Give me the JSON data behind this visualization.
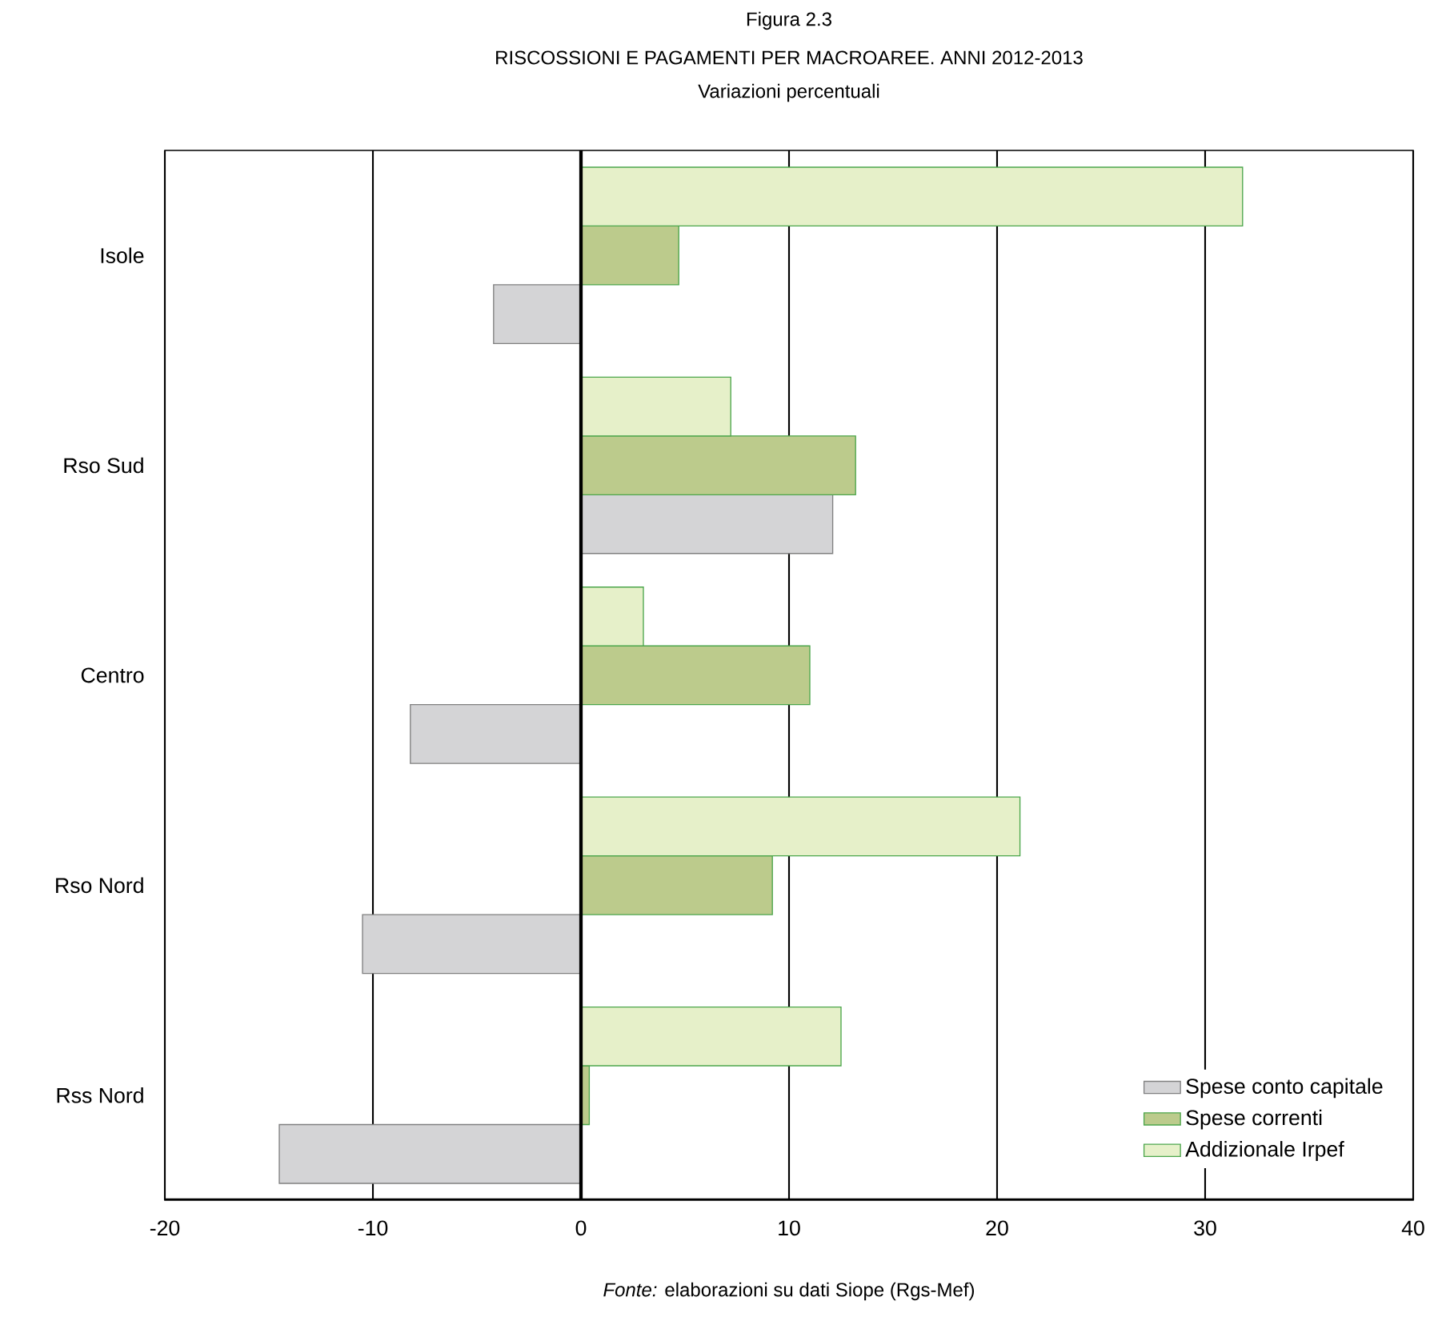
{
  "chart_data": {
    "type": "bar",
    "orientation": "horizontal",
    "title": "Figura 2.3",
    "subtitle": "RISCOSSIONI E PAGAMENTI PER MACROAREE. ANNI 2012-2013",
    "annotations": [
      "Variazioni percentuali",
      "*Fonte:* elaborazioni su dati Siope (Rgs-Mef)"
    ],
    "categories": [
      "Isole",
      "Rso Sud",
      "Centro",
      "Rso Nord",
      "Rss Nord"
    ],
    "series": [
      {
        "name": "Spese conto capitale",
        "color": "#d4d4d6",
        "values": [
          -4.2,
          12.1,
          -8.2,
          -10.5,
          -14.5
        ]
      },
      {
        "name": "Spese correnti",
        "color": "#bccb8c",
        "values": [
          4.7,
          13.2,
          11.0,
          9.2,
          0.4
        ]
      },
      {
        "name": "Addizionale Irpef",
        "color": "#e6f0c9",
        "values": [
          31.8,
          7.2,
          3.0,
          21.1,
          12.5
        ]
      }
    ],
    "xlim": [
      -20,
      40
    ],
    "xticks": [
      -20,
      -10,
      0,
      10,
      20,
      30,
      40
    ],
    "ref_lines": [
      {
        "axis": "x",
        "value": 0
      }
    ],
    "grid": "x",
    "legend": "bottom right"
  }
}
